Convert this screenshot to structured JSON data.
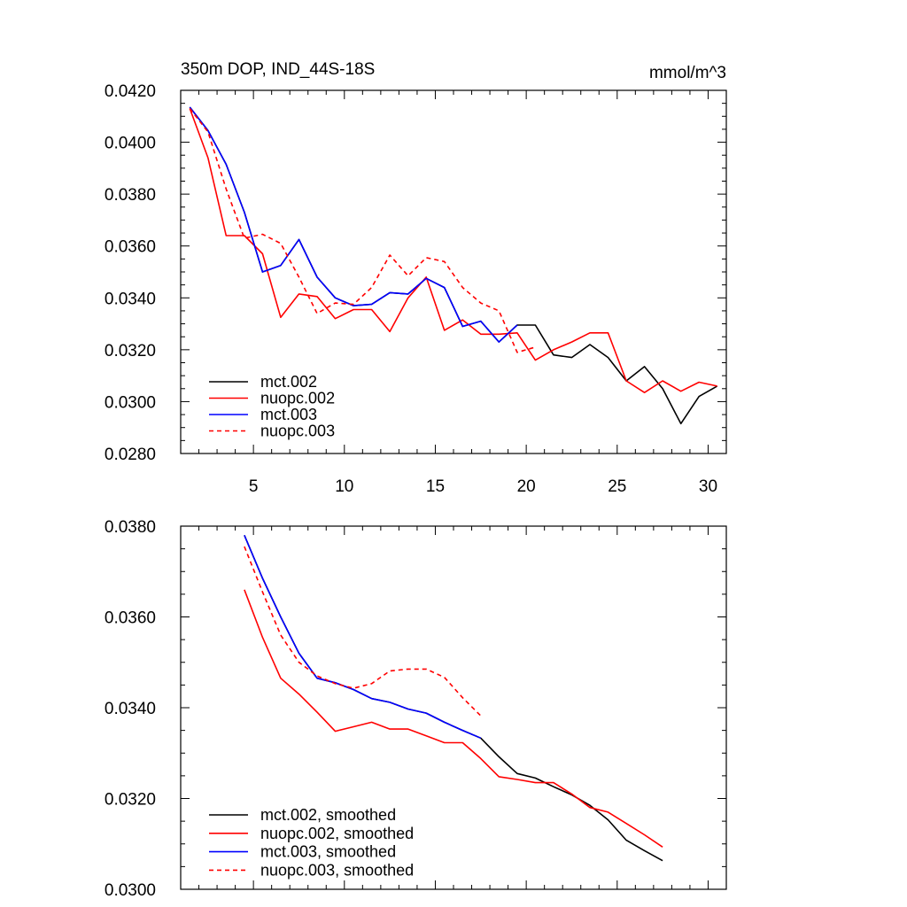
{
  "chart_data": [
    {
      "type": "line",
      "title": "350m DOP, IND_44S-18S",
      "units": "mmol/m^3",
      "xlim": [
        1,
        31
      ],
      "ylim": [
        0.028,
        0.042
      ],
      "x_ticks": [
        5,
        10,
        15,
        20,
        25,
        30
      ],
      "x_tick_labels": [
        "5",
        "10",
        "15",
        "20",
        "25",
        "30"
      ],
      "y_ticks": [
        0.028,
        0.03,
        0.032,
        0.034,
        0.036,
        0.038,
        0.04,
        0.042
      ],
      "y_tick_labels": [
        "0.0280",
        "0.0300",
        "0.0320",
        "0.0340",
        "0.0360",
        "0.0380",
        "0.0400",
        "0.0420"
      ],
      "legend_position": "bottom-left",
      "series": [
        {
          "name": "mct.002",
          "color": "#000000",
          "dash": "solid",
          "x": [
            1.5,
            2.5,
            3.5,
            4.5,
            5.5,
            6.5,
            7.5,
            8.5,
            9.5,
            10.5,
            11.5,
            12.5,
            13.5,
            14.5,
            15.5,
            16.5,
            17.5,
            18.5,
            19.5,
            20.5,
            21.5,
            22.5,
            23.5,
            24.5,
            25.5,
            26.5,
            27.5,
            28.5,
            29.5,
            30.5
          ],
          "y": [
            0.04135,
            0.04045,
            0.03915,
            0.0373,
            0.035,
            0.03525,
            0.03625,
            0.0348,
            0.034,
            0.0337,
            0.03375,
            0.0342,
            0.03415,
            0.03475,
            0.0344,
            0.0329,
            0.0331,
            0.0323,
            0.03295,
            0.03295,
            0.0318,
            0.0317,
            0.0322,
            0.0317,
            0.0308,
            0.03135,
            0.0305,
            0.02915,
            0.0302,
            0.0306
          ]
        },
        {
          "name": "nuopc.002",
          "color": "#ff0000",
          "dash": "solid",
          "x": [
            1.5,
            2.5,
            3.5,
            4.5,
            5.5,
            6.5,
            7.5,
            8.5,
            9.5,
            10.5,
            11.5,
            12.5,
            13.5,
            14.5,
            15.5,
            16.5,
            17.5,
            18.5,
            19.5,
            20.5,
            21.5,
            22.5,
            23.5,
            24.5,
            25.5,
            26.5,
            27.5,
            28.5,
            29.5,
            30.5
          ],
          "y": [
            0.0413,
            0.0394,
            0.0364,
            0.0364,
            0.0357,
            0.03325,
            0.03415,
            0.03405,
            0.0332,
            0.03355,
            0.03355,
            0.0327,
            0.034,
            0.0348,
            0.03275,
            0.03315,
            0.0326,
            0.0326,
            0.03265,
            0.0316,
            0.032,
            0.0323,
            0.03265,
            0.03265,
            0.0308,
            0.03035,
            0.0308,
            0.0304,
            0.03075,
            0.0306
          ]
        },
        {
          "name": "mct.003",
          "color": "#0000ff",
          "dash": "solid",
          "x": [
            1.5,
            2.5,
            3.5,
            4.5,
            5.5,
            6.5,
            7.5,
            8.5,
            9.5,
            10.5,
            11.5,
            12.5,
            13.5,
            14.5,
            15.5,
            16.5,
            17.5,
            18.5,
            19.5
          ],
          "y": [
            0.04135,
            0.04045,
            0.03915,
            0.0373,
            0.035,
            0.03525,
            0.03625,
            0.0348,
            0.034,
            0.0337,
            0.03375,
            0.0342,
            0.03415,
            0.03475,
            0.0344,
            0.0329,
            0.0331,
            0.0323,
            0.03295
          ]
        },
        {
          "name": "nuopc.003",
          "color": "#ff0000",
          "dash": "dashed",
          "x": [
            1.5,
            2.5,
            3.5,
            4.5,
            5.5,
            6.5,
            7.5,
            8.5,
            9.5,
            10.5,
            11.5,
            12.5,
            13.5,
            14.5,
            15.5,
            16.5,
            17.5,
            18.5,
            19.5,
            20.5
          ],
          "y": [
            0.0413,
            0.0404,
            0.0382,
            0.0363,
            0.03645,
            0.0361,
            0.0348,
            0.0334,
            0.0338,
            0.03375,
            0.0344,
            0.03565,
            0.03485,
            0.03555,
            0.0354,
            0.0344,
            0.0338,
            0.0335,
            0.0319,
            0.0321
          ]
        }
      ]
    },
    {
      "type": "line",
      "xlim": [
        1,
        31
      ],
      "ylim": [
        0.03,
        0.038
      ],
      "x_ticks": [
        5,
        10,
        15,
        20,
        25,
        30
      ],
      "y_ticks": [
        0.03,
        0.032,
        0.034,
        0.036,
        0.038
      ],
      "y_tick_labels": [
        "0.0300",
        "0.0320",
        "0.0340",
        "0.0360",
        "0.0380"
      ],
      "legend_position": "bottom-left",
      "series": [
        {
          "name": "mct.002, smoothed",
          "color": "#000000",
          "dash": "solid",
          "x": [
            4.5,
            5.5,
            6.5,
            7.5,
            8.5,
            9.5,
            10.5,
            11.5,
            12.5,
            13.5,
            14.5,
            15.5,
            16.5,
            17.5,
            18.5,
            19.5,
            20.5,
            21.5,
            22.5,
            23.5,
            24.5,
            25.5,
            26.5,
            27.5
          ],
          "y": [
            0.0378,
            0.03685,
            0.036,
            0.0352,
            0.03465,
            0.03455,
            0.0344,
            0.0342,
            0.03412,
            0.03397,
            0.03388,
            0.03368,
            0.0335,
            0.03333,
            0.03292,
            0.03255,
            0.03245,
            0.03226,
            0.03208,
            0.03185,
            0.03153,
            0.03108,
            0.03085,
            0.03063
          ]
        },
        {
          "name": "nuopc.002, smoothed",
          "color": "#ff0000",
          "dash": "solid",
          "x": [
            4.5,
            5.5,
            6.5,
            7.5,
            8.5,
            9.5,
            10.5,
            11.5,
            12.5,
            13.5,
            14.5,
            15.5,
            16.5,
            17.5,
            18.5,
            19.5,
            20.5,
            21.5,
            22.5,
            23.5,
            24.5,
            25.5,
            26.5,
            27.5
          ],
          "y": [
            0.0366,
            0.03555,
            0.03465,
            0.0343,
            0.0339,
            0.03348,
            0.03358,
            0.03368,
            0.03353,
            0.03353,
            0.03338,
            0.03323,
            0.03323,
            0.03288,
            0.03248,
            0.03242,
            0.03235,
            0.03235,
            0.0321,
            0.0318,
            0.0317,
            0.03145,
            0.0312,
            0.03093
          ]
        },
        {
          "name": "mct.003, smoothed",
          "color": "#0000ff",
          "dash": "solid",
          "x": [
            4.5,
            5.5,
            6.5,
            7.5,
            8.5,
            9.5,
            10.5,
            11.5,
            12.5,
            13.5,
            14.5,
            15.5,
            16.5,
            17.5
          ],
          "y": [
            0.0378,
            0.03685,
            0.036,
            0.0352,
            0.03465,
            0.03455,
            0.0344,
            0.0342,
            0.03412,
            0.03397,
            0.03388,
            0.03368,
            0.0335,
            0.03333
          ]
        },
        {
          "name": "nuopc.003, smoothed",
          "color": "#ff0000",
          "dash": "dashed",
          "x": [
            4.5,
            5.5,
            6.5,
            7.5,
            8.5,
            9.5,
            10.5,
            11.5,
            12.5,
            13.5,
            14.5,
            15.5,
            16.5,
            17.5
          ],
          "y": [
            0.03755,
            0.03655,
            0.0356,
            0.035,
            0.0347,
            0.03453,
            0.03443,
            0.03453,
            0.03481,
            0.03485,
            0.03485,
            0.03467,
            0.03422,
            0.03382
          ]
        }
      ]
    }
  ]
}
